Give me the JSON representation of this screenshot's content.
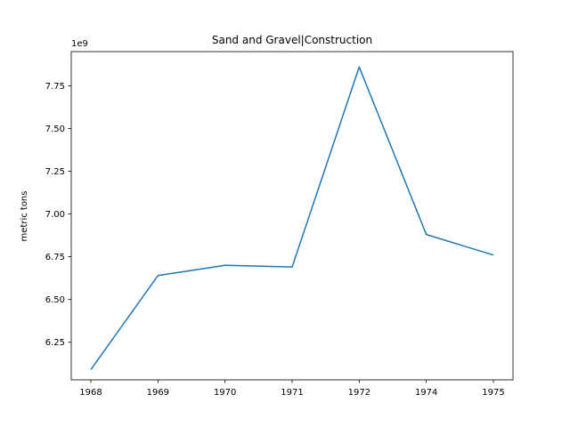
{
  "chart_data": {
    "type": "line",
    "title": "Sand and Gravel|Construction",
    "xlabel": "",
    "ylabel": "metric tons",
    "y_offset_label": "1e9",
    "categories": [
      "1968",
      "1969",
      "1970",
      "1971",
      "1972",
      "1974",
      "1975"
    ],
    "series": [
      {
        "values": [
          6.09,
          6.64,
          6.7,
          6.69,
          7.86,
          6.88,
          6.76
        ],
        "color": "#1f77b4"
      }
    ],
    "ylim": [
      6.03,
      7.95
    ],
    "yticks": [
      6.25,
      6.5,
      6.75,
      7.0,
      7.25,
      7.5,
      7.75
    ],
    "ytick_labels": [
      "6.25",
      "6.50",
      "6.75",
      "7.00",
      "7.25",
      "7.50",
      "7.75"
    ],
    "grid": false,
    "legend": "none"
  }
}
